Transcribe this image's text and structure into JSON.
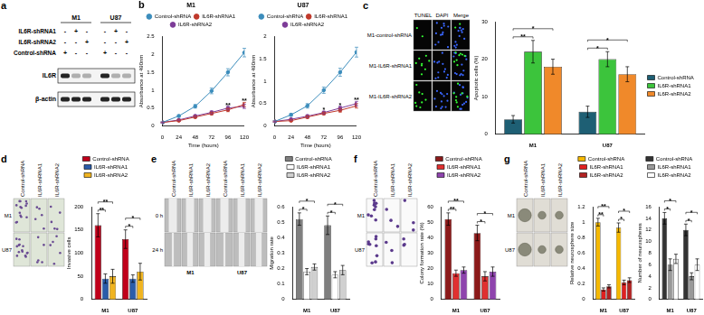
{
  "blot": {
    "panel": "a",
    "groups": [
      "M1",
      "U87"
    ],
    "conditions": [
      {
        "name": "IL6R-shRNA1",
        "signs": [
          "-",
          "+",
          "-",
          "-",
          "+",
          "-"
        ]
      },
      {
        "name": "IL6R-shRNA2",
        "signs": [
          "-",
          "-",
          "+",
          "-",
          "-",
          "+"
        ]
      },
      {
        "name": "Control-shRNA",
        "signs": [
          "+",
          "-",
          "-",
          "+",
          "-",
          "-"
        ]
      }
    ],
    "bands": [
      "IL6R",
      "β-actin"
    ]
  },
  "image_panels": [
    {
      "panel": "c",
      "columns": [
        "TUNEL",
        "DAPI",
        "Merge"
      ],
      "rows": [
        "M1-control-shRNA",
        "M1-IL6R-shRNA1",
        "M1-IL6R-shRNA2"
      ]
    },
    {
      "panel": "d",
      "columns": [
        "Control-shRNA",
        "IL6R-shRNA1",
        "IL6R-shRNA2"
      ],
      "rows": [
        "M1",
        "U87"
      ]
    },
    {
      "panel": "e",
      "columns": [
        "Control-shRNA",
        "IL6R-shRNA1",
        "IL6R-shRNA2"
      ],
      "rows": [
        "0 h",
        "24 h"
      ],
      "groups": [
        "M1",
        "U87"
      ]
    },
    {
      "panel": "f",
      "columns": [
        "Control-shRNA",
        "IL6R-shRNA1",
        "IL6R-shRNA2"
      ],
      "rows": [
        "M1",
        "U87"
      ]
    },
    {
      "panel": "g",
      "columns": [
        "Control-shRNA",
        "IL6R-shRNA1",
        "IL6R-shRNA2"
      ],
      "rows": [
        "M1",
        "U87"
      ]
    }
  ],
  "chart_data": [
    {
      "panel": "b",
      "type": "line",
      "title": "M1",
      "x_label": "Time (hours)",
      "y_label": "Absorbance at 490nm",
      "x": [
        0,
        24,
        48,
        72,
        96,
        120
      ],
      "xlim": [
        0,
        120
      ],
      "xticks": [
        0,
        24,
        48,
        72,
        96,
        120
      ],
      "ylim": [
        0,
        2.5
      ],
      "yticks": [
        0,
        0.5,
        1,
        1.5,
        2,
        2.5
      ],
      "grid": false,
      "legend": "top",
      "marker": "circle",
      "series": [
        {
          "name": "Control-shRNA",
          "color": "#3c8dbc",
          "values": [
            0.1,
            0.28,
            0.55,
            0.98,
            1.5,
            2.05
          ],
          "errors": [
            0.02,
            0.03,
            0.05,
            0.08,
            0.1,
            0.12
          ]
        },
        {
          "name": "IL6R-shRNA1",
          "color": "#c0392b",
          "values": [
            0.1,
            0.15,
            0.25,
            0.35,
            0.45,
            0.6
          ],
          "errors": [
            0.01,
            0.02,
            0.03,
            0.04,
            0.05,
            0.06
          ]
        },
        {
          "name": "IL6R-shRNA2",
          "color": "#7d3c98",
          "values": [
            0.1,
            0.17,
            0.28,
            0.38,
            0.5,
            0.55
          ],
          "errors": [
            0.01,
            0.02,
            0.03,
            0.04,
            0.05,
            0.06
          ]
        }
      ],
      "annotations": [
        {
          "x": 96,
          "label": "**"
        },
        {
          "x": 120,
          "label": "**"
        }
      ]
    },
    {
      "type": "line",
      "title": "U87",
      "x_label": "Time (hours)",
      "y_label": "Absorbance at 490nm",
      "x": [
        0,
        24,
        48,
        72,
        96,
        120
      ],
      "xlim": [
        0,
        120
      ],
      "xticks": [
        0,
        24,
        48,
        72,
        96,
        120
      ],
      "ylim": [
        0,
        2
      ],
      "yticks": [
        0,
        0.5,
        1,
        1.5,
        2
      ],
      "grid": false,
      "legend": "top",
      "marker": "circle",
      "series": [
        {
          "name": "Control-shRNA",
          "color": "#3c8dbc",
          "values": [
            0.1,
            0.25,
            0.45,
            0.8,
            1.2,
            1.65
          ],
          "errors": [
            0.02,
            0.03,
            0.05,
            0.07,
            0.09,
            0.11
          ]
        },
        {
          "name": "IL6R-shRNA1",
          "color": "#c0392b",
          "values": [
            0.1,
            0.12,
            0.2,
            0.28,
            0.35,
            0.45
          ],
          "errors": [
            0.01,
            0.02,
            0.03,
            0.03,
            0.04,
            0.05
          ]
        },
        {
          "name": "IL6R-shRNA2",
          "color": "#7d3c98",
          "values": [
            0.1,
            0.15,
            0.22,
            0.3,
            0.4,
            0.5
          ],
          "errors": [
            0.01,
            0.02,
            0.03,
            0.03,
            0.04,
            0.05
          ]
        }
      ],
      "annotations": [
        {
          "x": 72,
          "label": "*"
        },
        {
          "x": 96,
          "label": "*"
        },
        {
          "x": 120,
          "label": "**"
        }
      ]
    },
    {
      "type": "bar",
      "y_label": "Apoptotic cells (%)",
      "categories": [
        "M1",
        "U87"
      ],
      "ylim": [
        0,
        30
      ],
      "yticks": [
        0,
        10,
        20,
        30
      ],
      "grid": false,
      "legend": "right",
      "series": [
        {
          "name": "Control-shRNA",
          "color": "#1e5f74",
          "values": [
            4,
            6
          ],
          "errors": [
            1,
            1.5
          ]
        },
        {
          "name": "IL6R-shRNA1",
          "color": "#3cc43c",
          "values": [
            22,
            20
          ],
          "errors": [
            3,
            2
          ]
        },
        {
          "name": "IL6R-shRNA2",
          "color": "#f0892a",
          "values": [
            18,
            16
          ],
          "errors": [
            2,
            2
          ]
        }
      ],
      "significance": [
        {
          "category": "M1",
          "pair": [
            "Control-shRNA",
            "IL6R-shRNA1"
          ],
          "label": "**"
        },
        {
          "category": "M1",
          "pair": [
            "Control-shRNA",
            "IL6R-shRNA2"
          ],
          "label": "*"
        },
        {
          "category": "U87",
          "pair": [
            "Control-shRNA",
            "IL6R-shRNA1"
          ],
          "label": "*"
        },
        {
          "category": "U87",
          "pair": [
            "Control-shRNA",
            "IL6R-shRNA2"
          ],
          "label": "*"
        }
      ]
    },
    {
      "type": "bar",
      "y_label": "Invasive cells",
      "categories": [
        "M1",
        "U87"
      ],
      "ylim": [
        0,
        200
      ],
      "yticks": [
        0,
        50,
        100,
        150,
        200
      ],
      "grid": false,
      "legend": "top",
      "series": [
        {
          "name": "Control-shRNA",
          "color": "#c0001a",
          "values": [
            160,
            130
          ],
          "errors": [
            25,
            20
          ]
        },
        {
          "name": "IL6R-shRNA1",
          "color": "#2a5caa",
          "values": [
            45,
            45
          ],
          "errors": [
            10,
            8
          ]
        },
        {
          "name": "IL6R-shRNA2",
          "color": "#f0b420",
          "values": [
            50,
            60
          ],
          "errors": [
            15,
            18
          ]
        }
      ],
      "significance": [
        {
          "category": "M1",
          "pair": [
            "Control-shRNA",
            "IL6R-shRNA1"
          ],
          "label": "**"
        },
        {
          "category": "M1",
          "pair": [
            "Control-shRNA",
            "IL6R-shRNA2"
          ],
          "label": "**"
        },
        {
          "category": "U87",
          "pair": [
            "Control-shRNA",
            "IL6R-shRNA1"
          ],
          "label": "*"
        },
        {
          "category": "U87",
          "pair": [
            "Control-shRNA",
            "IL6R-shRNA2"
          ],
          "label": "*"
        }
      ]
    },
    {
      "type": "bar",
      "y_label": "Migration rate",
      "categories": [
        "M1",
        "U87"
      ],
      "ylim": [
        0,
        0.6
      ],
      "yticks": [
        0,
        0.1,
        0.2,
        0.3,
        0.4,
        0.5,
        0.6
      ],
      "grid": false,
      "legend": "top",
      "series": [
        {
          "name": "Control-shRNA",
          "color": "#7f7f7f",
          "values": [
            0.52,
            0.48
          ],
          "errors": [
            0.04,
            0.06
          ]
        },
        {
          "name": "IL6R-shRNA1",
          "color": "#ffffff",
          "values": [
            0.18,
            0.16
          ],
          "errors": [
            0.02,
            0.02
          ]
        },
        {
          "name": "IL6R-shRNA2",
          "color": "#d0d0d0",
          "values": [
            0.21,
            0.19
          ],
          "errors": [
            0.02,
            0.03
          ]
        }
      ],
      "significance": [
        {
          "category": "M1",
          "pair": [
            "Control-shRNA",
            "IL6R-shRNA1"
          ],
          "label": "*"
        },
        {
          "category": "M1",
          "pair": [
            "Control-shRNA",
            "IL6R-shRNA2"
          ],
          "label": "*"
        },
        {
          "category": "U87",
          "pair": [
            "Control-shRNA",
            "IL6R-shRNA1"
          ],
          "label": "*"
        },
        {
          "category": "U87",
          "pair": [
            "Control-shRNA",
            "IL6R-shRNA2"
          ],
          "label": "*"
        }
      ]
    },
    {
      "type": "bar",
      "y_label": "Colony formation rate (%)",
      "categories": [
        "M1",
        "U87"
      ],
      "ylim": [
        0,
        60
      ],
      "yticks": [
        0,
        10,
        20,
        30,
        40,
        50,
        60
      ],
      "grid": false,
      "legend": "top",
      "series": [
        {
          "name": "Control-shRNA",
          "color": "#8b1a1a",
          "values": [
            52,
            43
          ],
          "errors": [
            4,
            5
          ]
        },
        {
          "name": "IL6R-shRNA1",
          "color": "#e03030",
          "values": [
            17,
            15
          ],
          "errors": [
            2,
            3
          ]
        },
        {
          "name": "IL6R-shRNA2",
          "color": "#8e44ad",
          "values": [
            19,
            18
          ],
          "errors": [
            2,
            3
          ]
        }
      ],
      "significance": [
        {
          "category": "M1",
          "pair": [
            "Control-shRNA",
            "IL6R-shRNA1"
          ],
          "label": "**"
        },
        {
          "category": "M1",
          "pair": [
            "Control-shRNA",
            "IL6R-shRNA2"
          ],
          "label": "**"
        },
        {
          "category": "U87",
          "pair": [
            "Control-shRNA",
            "IL6R-shRNA1"
          ],
          "label": "*"
        },
        {
          "category": "U87",
          "pair": [
            "Control-shRNA",
            "IL6R-shRNA2"
          ],
          "label": "*"
        }
      ]
    },
    {
      "type": "bar",
      "y_label": "Relative neurosphere size",
      "categories": [
        "M1",
        "U87"
      ],
      "ylim": [
        0,
        1.2
      ],
      "yticks": [
        0,
        0.2,
        0.4,
        0.6,
        0.8,
        1,
        1.2
      ],
      "grid": false,
      "legend": "top",
      "series": [
        {
          "name": "Control-shRNA",
          "color": "#f5b800",
          "values": [
            1.0,
            0.93
          ],
          "errors": [
            0.05,
            0.06
          ]
        },
        {
          "name": "IL6R-shRNA1",
          "color": "#e02020",
          "values": [
            0.13,
            0.22
          ],
          "errors": [
            0.02,
            0.03
          ]
        },
        {
          "name": "IL6R-shRNA2",
          "color": "#b22222",
          "values": [
            0.17,
            0.25
          ],
          "errors": [
            0.02,
            0.03
          ]
        }
      ],
      "significance": [
        {
          "category": "M1",
          "pair": [
            "Control-shRNA",
            "IL6R-shRNA1"
          ],
          "label": "**"
        },
        {
          "category": "M1",
          "pair": [
            "Control-shRNA",
            "IL6R-shRNA2"
          ],
          "label": "**"
        },
        {
          "category": "U87",
          "pair": [
            "Control-shRNA",
            "IL6R-shRNA1"
          ],
          "label": "*"
        },
        {
          "category": "U87",
          "pair": [
            "Control-shRNA",
            "IL6R-shRNA2"
          ],
          "label": "*"
        }
      ]
    },
    {
      "type": "bar",
      "y_label": "Number of neurospheres",
      "categories": [
        "M1",
        "U87"
      ],
      "ylim": [
        0,
        16
      ],
      "yticks": [
        0,
        2,
        4,
        6,
        8,
        10,
        12,
        14,
        16
      ],
      "grid": false,
      "legend": "top",
      "series": [
        {
          "name": "Control-shRNA",
          "color": "#333333",
          "values": [
            14,
            12
          ],
          "errors": [
            1,
            1
          ]
        },
        {
          "name": "IL6R-shRNA1",
          "color": "#999999",
          "values": [
            6,
            4
          ],
          "errors": [
            1,
            0.6
          ]
        },
        {
          "name": "IL6R-shRNA2",
          "color": "#ffffff",
          "values": [
            7,
            6
          ],
          "errors": [
            0.8,
            1
          ]
        }
      ],
      "significance": [
        {
          "category": "M1",
          "pair": [
            "Control-shRNA",
            "IL6R-shRNA1"
          ],
          "label": "*"
        },
        {
          "category": "M1",
          "pair": [
            "Control-shRNA",
            "IL6R-shRNA2"
          ],
          "label": "*"
        },
        {
          "category": "U87",
          "pair": [
            "Control-shRNA",
            "IL6R-shRNA1"
          ],
          "label": "*"
        },
        {
          "category": "U87",
          "pair": [
            "Control-shRNA",
            "IL6R-shRNA2"
          ],
          "label": "*"
        }
      ]
    }
  ]
}
